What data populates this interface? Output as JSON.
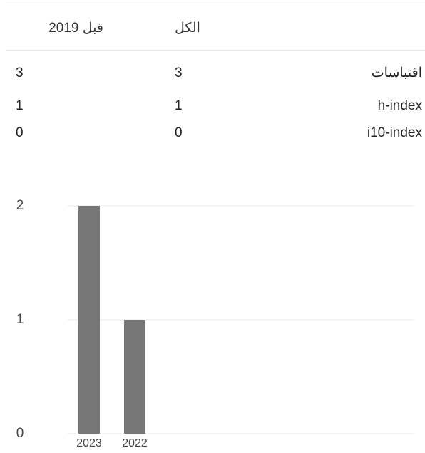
{
  "table": {
    "header": {
      "all": "الكل",
      "since": "قبل 2019"
    },
    "rows": [
      {
        "label": "اقتباسات",
        "all": 3,
        "since": 3
      },
      {
        "label": "h-index",
        "all": 1,
        "since": 1
      },
      {
        "label": "i10-index",
        "all": 0,
        "since": 0
      }
    ]
  },
  "chart_data": {
    "type": "bar",
    "categories": [
      "2023",
      "2022"
    ],
    "values": [
      2,
      1
    ],
    "color": "#777777",
    "ylim": [
      0,
      2
    ],
    "yticks": [
      0,
      1,
      2
    ],
    "grid": true
  }
}
